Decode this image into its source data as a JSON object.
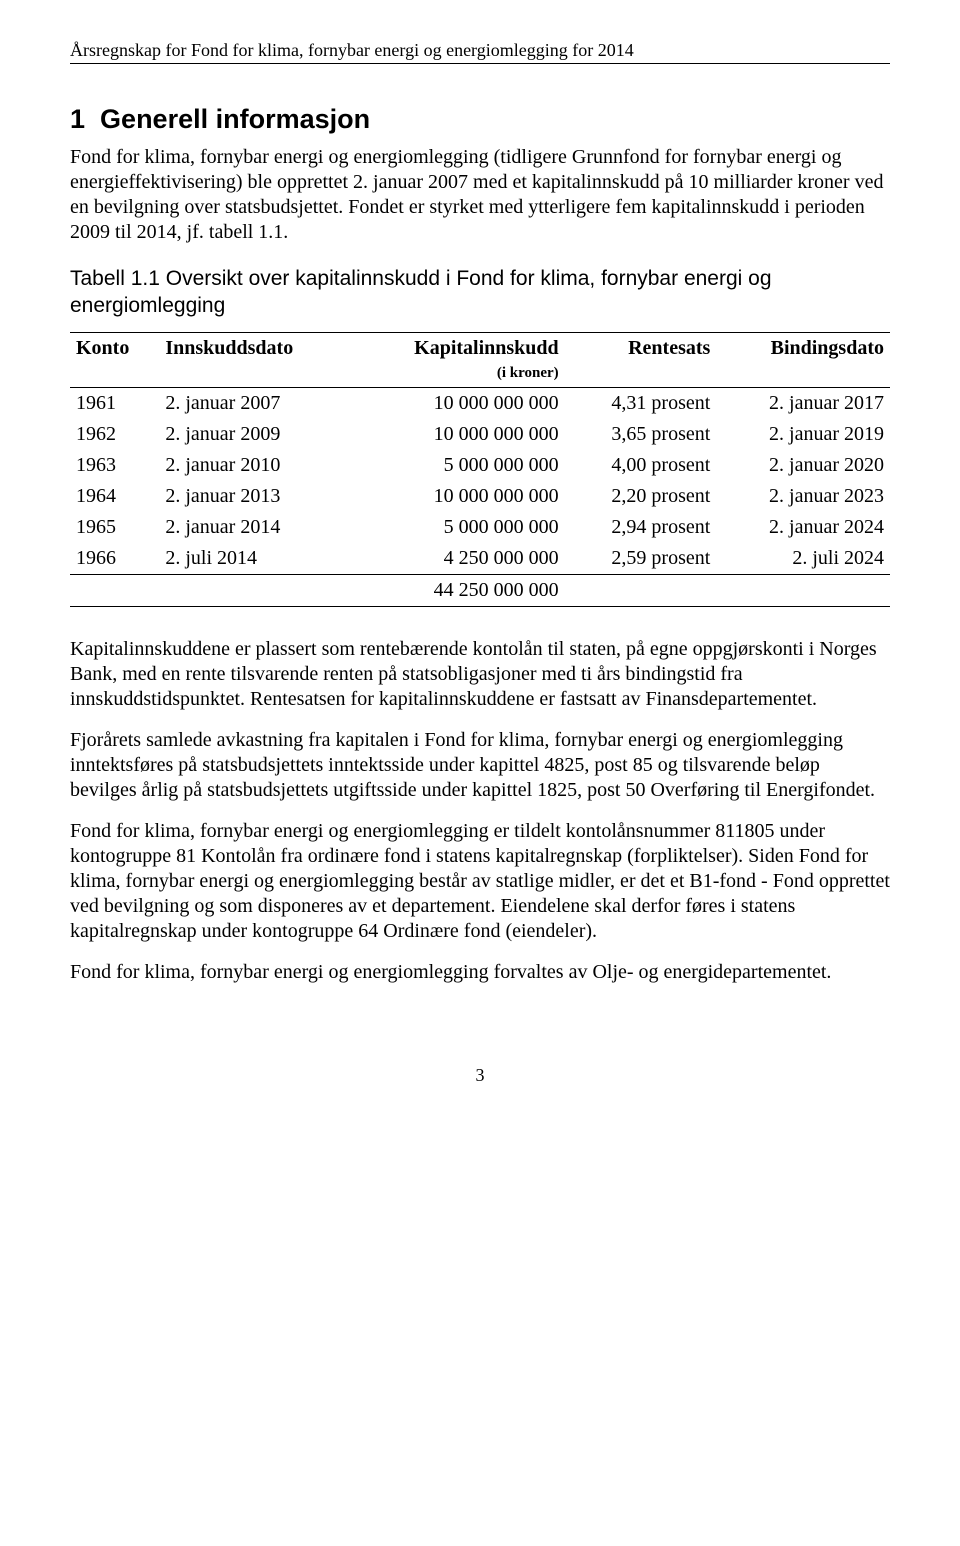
{
  "header": "Årsregnskap for Fond for klima, fornybar energi og energiomlegging for 2014",
  "section_number": "1",
  "section_title": "Generell informasjon",
  "intro_para": "Fond for klima, fornybar energi og energiomlegging (tidligere Grunnfond for fornybar energi og energieffektivisering) ble opprettet 2. januar 2007 med et kapitalinnskudd på 10 milliarder kroner ved en bevilgning over statsbudsjettet. Fondet er styrket med ytterligere fem kapitalinnskudd i perioden 2009 til 2014, jf. tabell 1.1.",
  "table_caption": "Tabell 1.1 Oversikt over kapitalinnskudd i Fond for klima, fornybar energi og energiomlegging",
  "table": {
    "columns": {
      "konto": "Konto",
      "innskuddsdato": "Innskuddsdato",
      "kapital": "Kapitalinnskudd",
      "kapital_sub": "(i kroner)",
      "rentesats": "Rentesats",
      "bindingsdato": "Bindingsdato"
    },
    "rows": [
      {
        "konto": "1961",
        "dato": "2. januar 2007",
        "kapital": "10 000 000 000",
        "rente": "4,31 prosent",
        "binding": "2. januar 2017"
      },
      {
        "konto": "1962",
        "dato": "2. januar 2009",
        "kapital": "10 000 000 000",
        "rente": "3,65 prosent",
        "binding": "2. januar 2019"
      },
      {
        "konto": "1963",
        "dato": "2. januar 2010",
        "kapital": "5 000 000 000",
        "rente": "4,00 prosent",
        "binding": "2. januar 2020"
      },
      {
        "konto": "1964",
        "dato": "2. januar 2013",
        "kapital": "10 000 000 000",
        "rente": "2,20 prosent",
        "binding": "2. januar 2023"
      },
      {
        "konto": "1965",
        "dato": "2. januar 2014",
        "kapital": "5 000 000 000",
        "rente": "2,94 prosent",
        "binding": "2. januar 2024"
      },
      {
        "konto": "1966",
        "dato": "2. juli 2014",
        "kapital": "4 250 000 000",
        "rente": "2,59 prosent",
        "binding": "2. juli 2024"
      }
    ],
    "total": "44 250 000 000"
  },
  "paras": [
    "Kapitalinnskuddene er plassert som rentebærende kontolån til staten, på egne oppgjørskonti i Norges Bank, med en rente tilsvarende renten på statsobligasjoner med ti års bindingstid fra innskuddstidspunktet. Rentesatsen for kapitalinnskuddene er fastsatt av Finansdepartementet.",
    "Fjorårets samlede avkastning fra kapitalen i Fond for klima, fornybar energi og energiomlegging inntektsføres på statsbudsjettets inntektsside under kapittel 4825, post 85 og tilsvarende beløp bevilges årlig på statsbudsjettets utgiftsside under kapittel 1825, post 50 Overføring til Energifondet.",
    "Fond for klima, fornybar energi og energiomlegging er tildelt kontolånsnummer 811805 under kontogruppe 81 Kontolån fra ordinære fond i statens kapitalregnskap (forpliktelser). Siden Fond for klima, fornybar energi og energiomlegging består av statlige midler, er det et B1-fond - Fond opprettet ved bevilgning og som disponeres av et departement. Eiendelene skal derfor føres i statens kapitalregnskap under kontogruppe 64 Ordinære fond (eiendeler).",
    "Fond for klima, fornybar energi og energiomlegging forvaltes av Olje- og energidepartementet."
  ],
  "page_number": "3"
}
